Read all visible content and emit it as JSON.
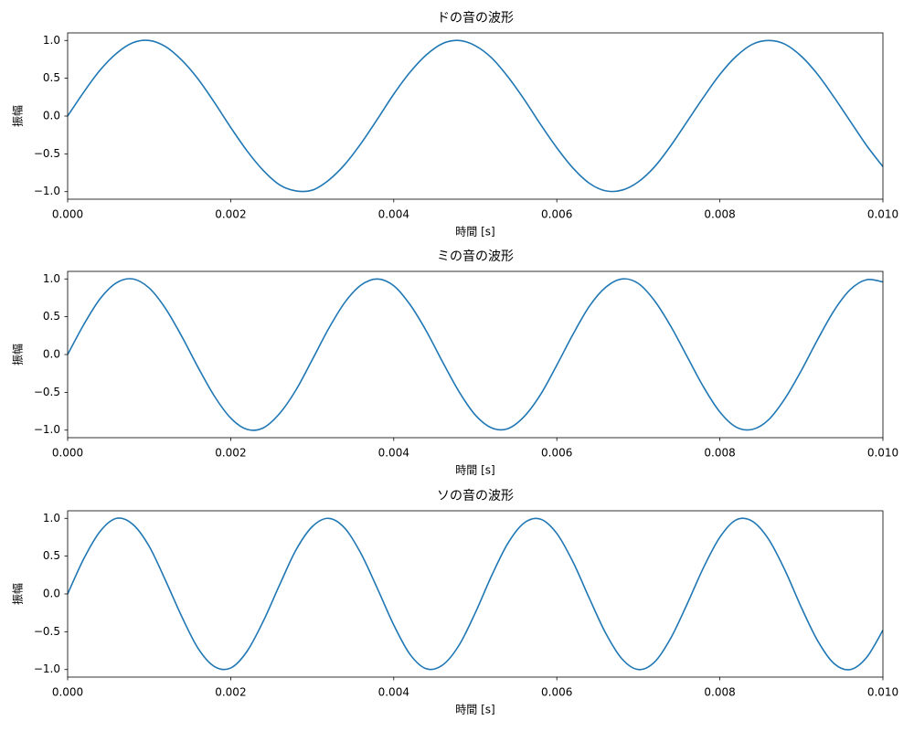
{
  "chart_data": [
    {
      "type": "line",
      "title": "ドの音の波形",
      "x_label": "時間 [s]",
      "y_label": "振幅",
      "color": "#1f77b4",
      "x": [
        0,
        0.0002,
        0.0004,
        0.0006,
        0.0008,
        0.001,
        0.0012,
        0.0014,
        0.0016,
        0.0018,
        0.002,
        0.0022,
        0.0024,
        0.0026,
        0.0028,
        0.003,
        0.0032,
        0.0034,
        0.0036,
        0.0038,
        0.004,
        0.0042,
        0.0044,
        0.0046,
        0.0048,
        0.005,
        0.0052,
        0.0054,
        0.0056,
        0.0058,
        0.006,
        0.0062,
        0.0064,
        0.0066,
        0.0068,
        0.007,
        0.0072,
        0.0074,
        0.0076,
        0.0078,
        0.008,
        0.0082,
        0.0084,
        0.0086,
        0.0088,
        0.009,
        0.0092,
        0.0094,
        0.0096,
        0.0098,
        0.01
      ],
      "values": [
        0,
        0.32,
        0.61,
        0.83,
        0.97,
        1.0,
        0.92,
        0.74,
        0.49,
        0.18,
        -0.15,
        -0.46,
        -0.72,
        -0.91,
        -0.99,
        -0.98,
        -0.85,
        -0.64,
        -0.36,
        -0.04,
        0.29,
        0.58,
        0.81,
        0.96,
        1.0,
        0.93,
        0.77,
        0.52,
        0.22,
        -0.11,
        -0.42,
        -0.69,
        -0.89,
        -0.99,
        -0.98,
        -0.87,
        -0.67,
        -0.39,
        -0.07,
        0.25,
        0.55,
        0.79,
        0.95,
        1.0,
        0.95,
        0.79,
        0.55,
        0.25,
        -0.07,
        -0.39,
        -0.67
      ],
      "xlim": [
        0,
        0.01
      ],
      "ylim": [
        -1.1,
        1.1
      ],
      "xticks": [
        {
          "value": 0,
          "label": "0.000"
        },
        {
          "value": 0.002,
          "label": "0.002"
        },
        {
          "value": 0.004,
          "label": "0.004"
        },
        {
          "value": 0.006,
          "label": "0.006"
        },
        {
          "value": 0.008,
          "label": "0.008"
        },
        {
          "value": 0.01,
          "label": "0.010"
        }
      ],
      "yticks": [
        {
          "value": -1,
          "label": "−1.0"
        },
        {
          "value": -0.5,
          "label": "−0.5"
        },
        {
          "value": 0,
          "label": "0.0"
        },
        {
          "value": 0.5,
          "label": "0.5"
        },
        {
          "value": 1,
          "label": "1.0"
        }
      ]
    },
    {
      "type": "line",
      "title": "ミの音の波形",
      "x_label": "時間 [s]",
      "y_label": "振幅",
      "color": "#1f77b4",
      "x": [
        0,
        0.0002,
        0.0004,
        0.0006,
        0.0008,
        0.001,
        0.0012,
        0.0014,
        0.0016,
        0.0018,
        0.002,
        0.0022,
        0.0024,
        0.0026,
        0.0028,
        0.003,
        0.0032,
        0.0034,
        0.0036,
        0.0038,
        0.004,
        0.0042,
        0.0044,
        0.0046,
        0.0048,
        0.005,
        0.0052,
        0.0054,
        0.0056,
        0.0058,
        0.006,
        0.0062,
        0.0064,
        0.0066,
        0.0068,
        0.007,
        0.0072,
        0.0074,
        0.0076,
        0.0078,
        0.008,
        0.0082,
        0.0084,
        0.0086,
        0.0088,
        0.009,
        0.0092,
        0.0094,
        0.0096,
        0.0098,
        0.01
      ],
      "values": [
        0,
        0.4,
        0.74,
        0.95,
        1.0,
        0.88,
        0.61,
        0.24,
        -0.17,
        -0.55,
        -0.84,
        -0.99,
        -0.97,
        -0.78,
        -0.47,
        -0.07,
        0.34,
        0.69,
        0.92,
        1.0,
        0.91,
        0.66,
        0.31,
        -0.1,
        -0.49,
        -0.8,
        -0.97,
        -0.98,
        -0.82,
        -0.53,
        -0.14,
        0.27,
        0.64,
        0.89,
        1.0,
        0.94,
        0.71,
        0.37,
        -0.03,
        -0.43,
        -0.76,
        -0.96,
        -0.99,
        -0.86,
        -0.58,
        -0.21,
        0.2,
        0.58,
        0.86,
        0.99,
        0.96
      ],
      "xlim": [
        0,
        0.01
      ],
      "ylim": [
        -1.1,
        1.1
      ],
      "xticks": [
        {
          "value": 0,
          "label": "0.000"
        },
        {
          "value": 0.002,
          "label": "0.002"
        },
        {
          "value": 0.004,
          "label": "0.004"
        },
        {
          "value": 0.006,
          "label": "0.006"
        },
        {
          "value": 0.008,
          "label": "0.008"
        },
        {
          "value": 0.01,
          "label": "0.010"
        }
      ],
      "yticks": [
        {
          "value": -1,
          "label": "−1.0"
        },
        {
          "value": -0.5,
          "label": "−0.5"
        },
        {
          "value": 0,
          "label": "0.0"
        },
        {
          "value": 0.5,
          "label": "0.5"
        },
        {
          "value": 1,
          "label": "1.0"
        }
      ]
    },
    {
      "type": "line",
      "title": "ソの音の波形",
      "x_label": "時間 [s]",
      "y_label": "振幅",
      "color": "#1f77b4",
      "x": [
        0,
        0.0002,
        0.0004,
        0.0006,
        0.0008,
        0.001,
        0.0012,
        0.0014,
        0.0016,
        0.0018,
        0.002,
        0.0022,
        0.0024,
        0.0026,
        0.0028,
        0.003,
        0.0032,
        0.0034,
        0.0036,
        0.0038,
        0.004,
        0.0042,
        0.0044,
        0.0046,
        0.0048,
        0.005,
        0.0052,
        0.0054,
        0.0056,
        0.0058,
        0.006,
        0.0062,
        0.0064,
        0.0066,
        0.0068,
        0.007,
        0.0072,
        0.0074,
        0.0076,
        0.0078,
        0.008,
        0.0082,
        0.0084,
        0.0086,
        0.0088,
        0.009,
        0.0092,
        0.0094,
        0.0096,
        0.0098,
        0.01
      ],
      "values": [
        0,
        0.47,
        0.83,
        1.0,
        0.92,
        0.63,
        0.18,
        -0.3,
        -0.72,
        -0.96,
        -0.98,
        -0.76,
        -0.36,
        0.12,
        0.58,
        0.89,
        1.0,
        0.87,
        0.53,
        0.07,
        -0.41,
        -0.8,
        -0.99,
        -0.94,
        -0.68,
        -0.25,
        0.24,
        0.67,
        0.94,
        0.99,
        0.8,
        0.42,
        -0.06,
        -0.52,
        -0.86,
        -1.0,
        -0.9,
        -0.58,
        -0.13,
        0.35,
        0.75,
        0.98,
        0.96,
        0.72,
        0.31,
        -0.18,
        -0.62,
        -0.92,
        -1.0,
        -0.84,
        -0.48
      ],
      "xlim": [
        0,
        0.01
      ],
      "ylim": [
        -1.1,
        1.1
      ],
      "xticks": [
        {
          "value": 0,
          "label": "0.000"
        },
        {
          "value": 0.002,
          "label": "0.002"
        },
        {
          "value": 0.004,
          "label": "0.004"
        },
        {
          "value": 0.006,
          "label": "0.006"
        },
        {
          "value": 0.008,
          "label": "0.008"
        },
        {
          "value": 0.01,
          "label": "0.010"
        }
      ],
      "yticks": [
        {
          "value": -1,
          "label": "−1.0"
        },
        {
          "value": -0.5,
          "label": "−0.5"
        },
        {
          "value": 0,
          "label": "0.0"
        },
        {
          "value": 0.5,
          "label": "0.5"
        },
        {
          "value": 1,
          "label": "1.0"
        }
      ]
    }
  ]
}
